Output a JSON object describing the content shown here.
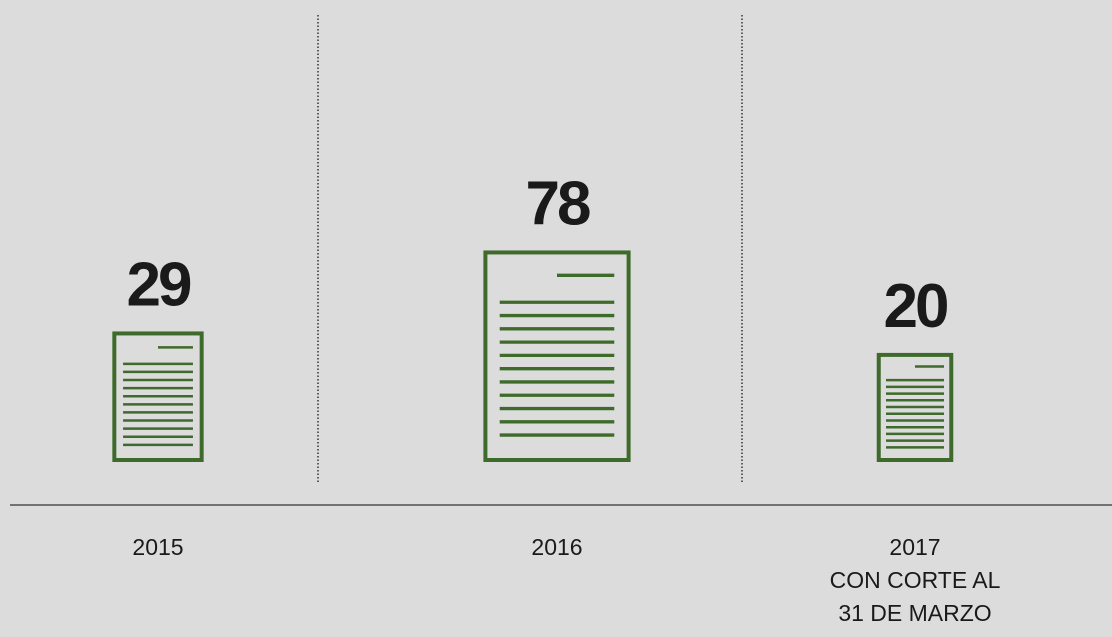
{
  "chart_data": {
    "type": "pictograph",
    "categories": [
      "2015",
      "2016",
      "2017"
    ],
    "values": [
      29,
      78,
      20
    ],
    "color": "#3e6a2b",
    "annotations": [
      "CON CORTE AL",
      "31 DE MARZO"
    ]
  }
}
